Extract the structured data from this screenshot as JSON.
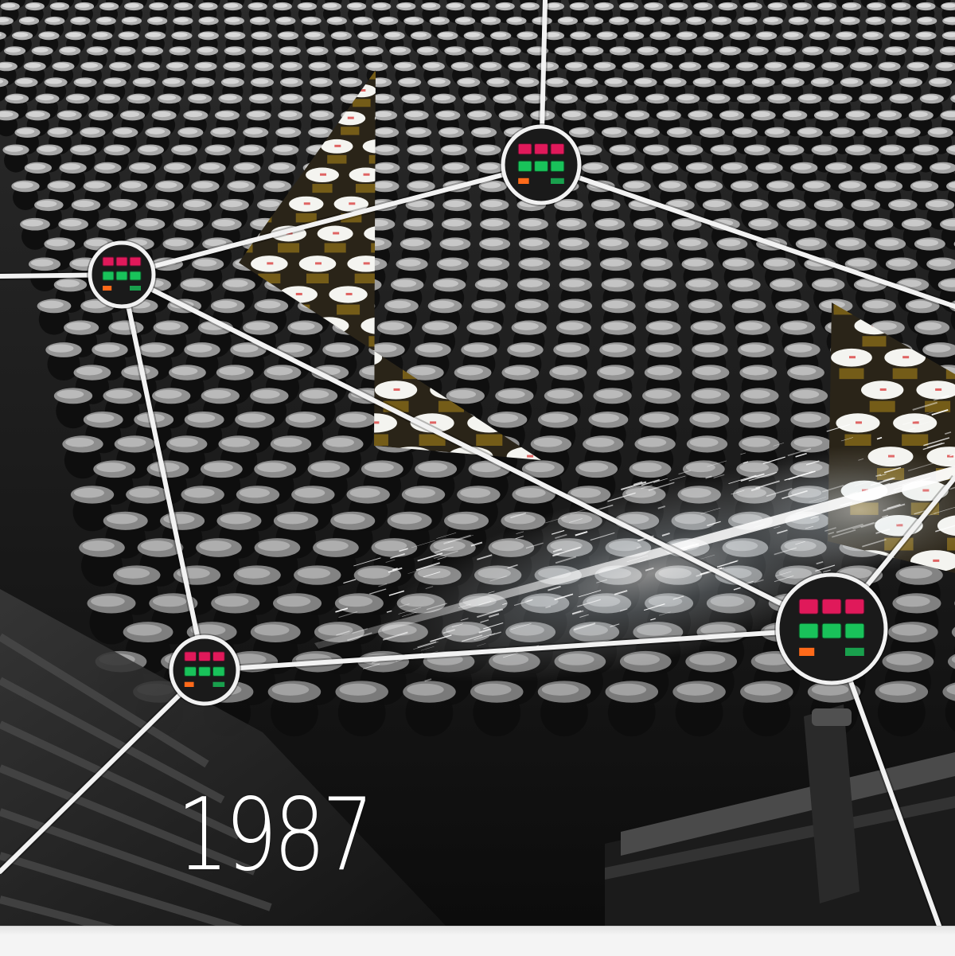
{
  "caption": {
    "year": "1987"
  },
  "colors": {
    "line": "#f2f2f2",
    "indicator_red": "#e0195a",
    "indicator_green": "#19c25a",
    "indicator_orange": "#ff6a1a",
    "cap_white": "#e8e8e8"
  },
  "icons": {
    "network_node": "status-panel-node-icon"
  }
}
